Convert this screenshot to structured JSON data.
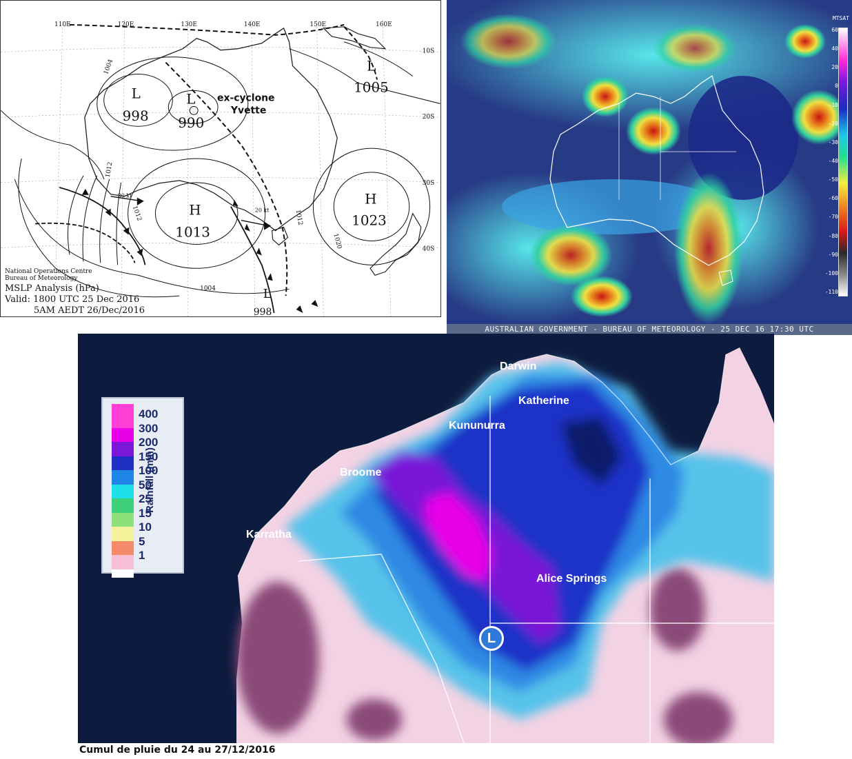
{
  "mslp_chart": {
    "storm_label": "ex-cyclone\nYvette",
    "storm_label_line1": "ex-cyclone",
    "storm_label_line2": "Yvette",
    "longitudes": [
      "110E",
      "120E",
      "130E",
      "140E",
      "150E",
      "160E"
    ],
    "latitudes": [
      "10S",
      "20S",
      "30S",
      "40S"
    ],
    "isobar_labels": [
      "1004",
      "1012",
      "1012",
      "1020",
      "1004",
      "1012"
    ],
    "wind_labels": [
      "30 kt",
      "20 kt"
    ],
    "pressure_systems": [
      {
        "type": "L",
        "value": "998"
      },
      {
        "type": "L",
        "value": "990"
      },
      {
        "type": "L",
        "value": "1005"
      },
      {
        "type": "H",
        "value": "1013"
      },
      {
        "type": "H",
        "value": "1023"
      },
      {
        "type": "L",
        "value": "998"
      }
    ],
    "credit_line1": "National Operations Centre",
    "credit_line2": "Bureau of Meteorology",
    "title": "MSLP Analysis (hPa)",
    "valid": "Valid: 1800 UTC 25 Dec 2016",
    "local_time": "5AM AEDT 26/Dec/2016"
  },
  "satellite": {
    "footer": "AUSTRALIAN GOVERNMENT - BUREAU OF METEOROLOGY - 25 DEC 16 17:30 UTC",
    "colorbar_title": "MTSAT",
    "colorbar_labels": [
      "60",
      "40",
      "20",
      "0",
      "-10",
      "-20",
      "-30",
      "-40",
      "-50",
      "-60",
      "-70",
      "-80",
      "-90",
      "-100",
      "-110"
    ]
  },
  "rainfall": {
    "cities": [
      {
        "name": "Darwin"
      },
      {
        "name": "Katherine"
      },
      {
        "name": "Kununurra"
      },
      {
        "name": "Broome"
      },
      {
        "name": "Karratha"
      },
      {
        "name": "Alice Springs"
      }
    ],
    "low_symbol": "L",
    "legend_title": "Rainfall (mm)",
    "legend": [
      {
        "value": "400",
        "color": "#ff3fd6"
      },
      {
        "value": "300",
        "color": "#e800e8"
      },
      {
        "value": "200",
        "color": "#7a17d8"
      },
      {
        "value": "150",
        "color": "#1f2fc4"
      },
      {
        "value": "100",
        "color": "#1f86e8"
      },
      {
        "value": "50",
        "color": "#1ee0ea"
      },
      {
        "value": "25",
        "color": "#3fd07a"
      },
      {
        "value": "15",
        "color": "#8de07a"
      },
      {
        "value": "10",
        "color": "#f4f29a"
      },
      {
        "value": "5",
        "color": "#f48a6a"
      },
      {
        "value": "1",
        "color": "#f7bed6"
      }
    ],
    "legend_top_color": "#ff3fd6",
    "legend_bottom_color": "#ffffff"
  },
  "caption": "Cumul de pluie du 24 au 27/12/2016"
}
